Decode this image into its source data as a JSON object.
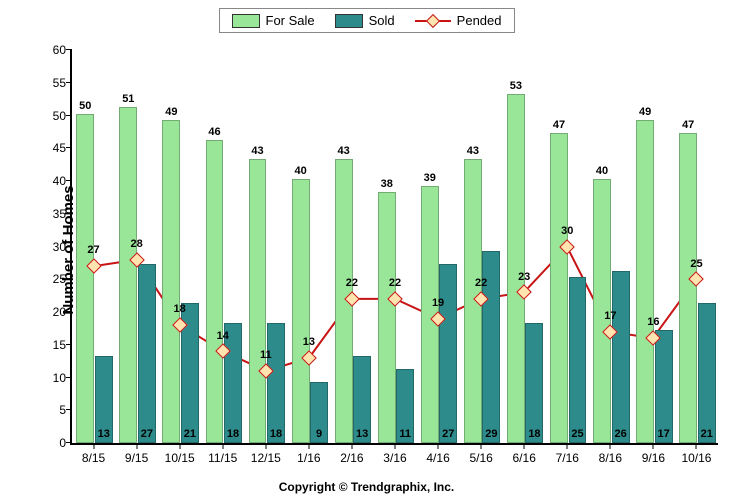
{
  "chart": {
    "type": "bar+line",
    "y_title": "Number of Homes",
    "ylim": [
      0,
      60
    ],
    "ytick_step": 5,
    "footer": "Copyright © Trendgraphix, Inc.",
    "legend_border_color": "#888888",
    "axis_label_fontsize": 12,
    "data_label_fontsize": 11,
    "background_color": "#ffffff",
    "series": [
      {
        "key": "for_sale",
        "label": "For Sale",
        "color": "#99e699",
        "type": "bar",
        "label_pos": "above"
      },
      {
        "key": "sold",
        "label": "Sold",
        "color": "#2e8b8b",
        "type": "bar",
        "label_pos": "inside"
      },
      {
        "key": "pended",
        "label": "Pended",
        "color": "#c81414",
        "type": "line",
        "marker": "triangle",
        "marker_fill": "#ffe4b0",
        "marker_border": "#c81414"
      }
    ],
    "categories": [
      "8/15",
      "9/15",
      "10/15",
      "11/15",
      "12/15",
      "1/16",
      "2/16",
      "3/16",
      "4/16",
      "5/16",
      "6/16",
      "7/16",
      "8/16",
      "9/16",
      "10/16"
    ],
    "for_sale": [
      50,
      51,
      49,
      46,
      43,
      40,
      43,
      38,
      39,
      43,
      53,
      47,
      40,
      49,
      47
    ],
    "sold": [
      13,
      27,
      21,
      18,
      18,
      9,
      13,
      11,
      27,
      29,
      18,
      25,
      26,
      17,
      21
    ],
    "pended": [
      27,
      28,
      18,
      14,
      11,
      13,
      22,
      22,
      19,
      22,
      23,
      30,
      17,
      16,
      25
    ],
    "bar_group_width": 0.8,
    "bar_gap": 0.06
  }
}
